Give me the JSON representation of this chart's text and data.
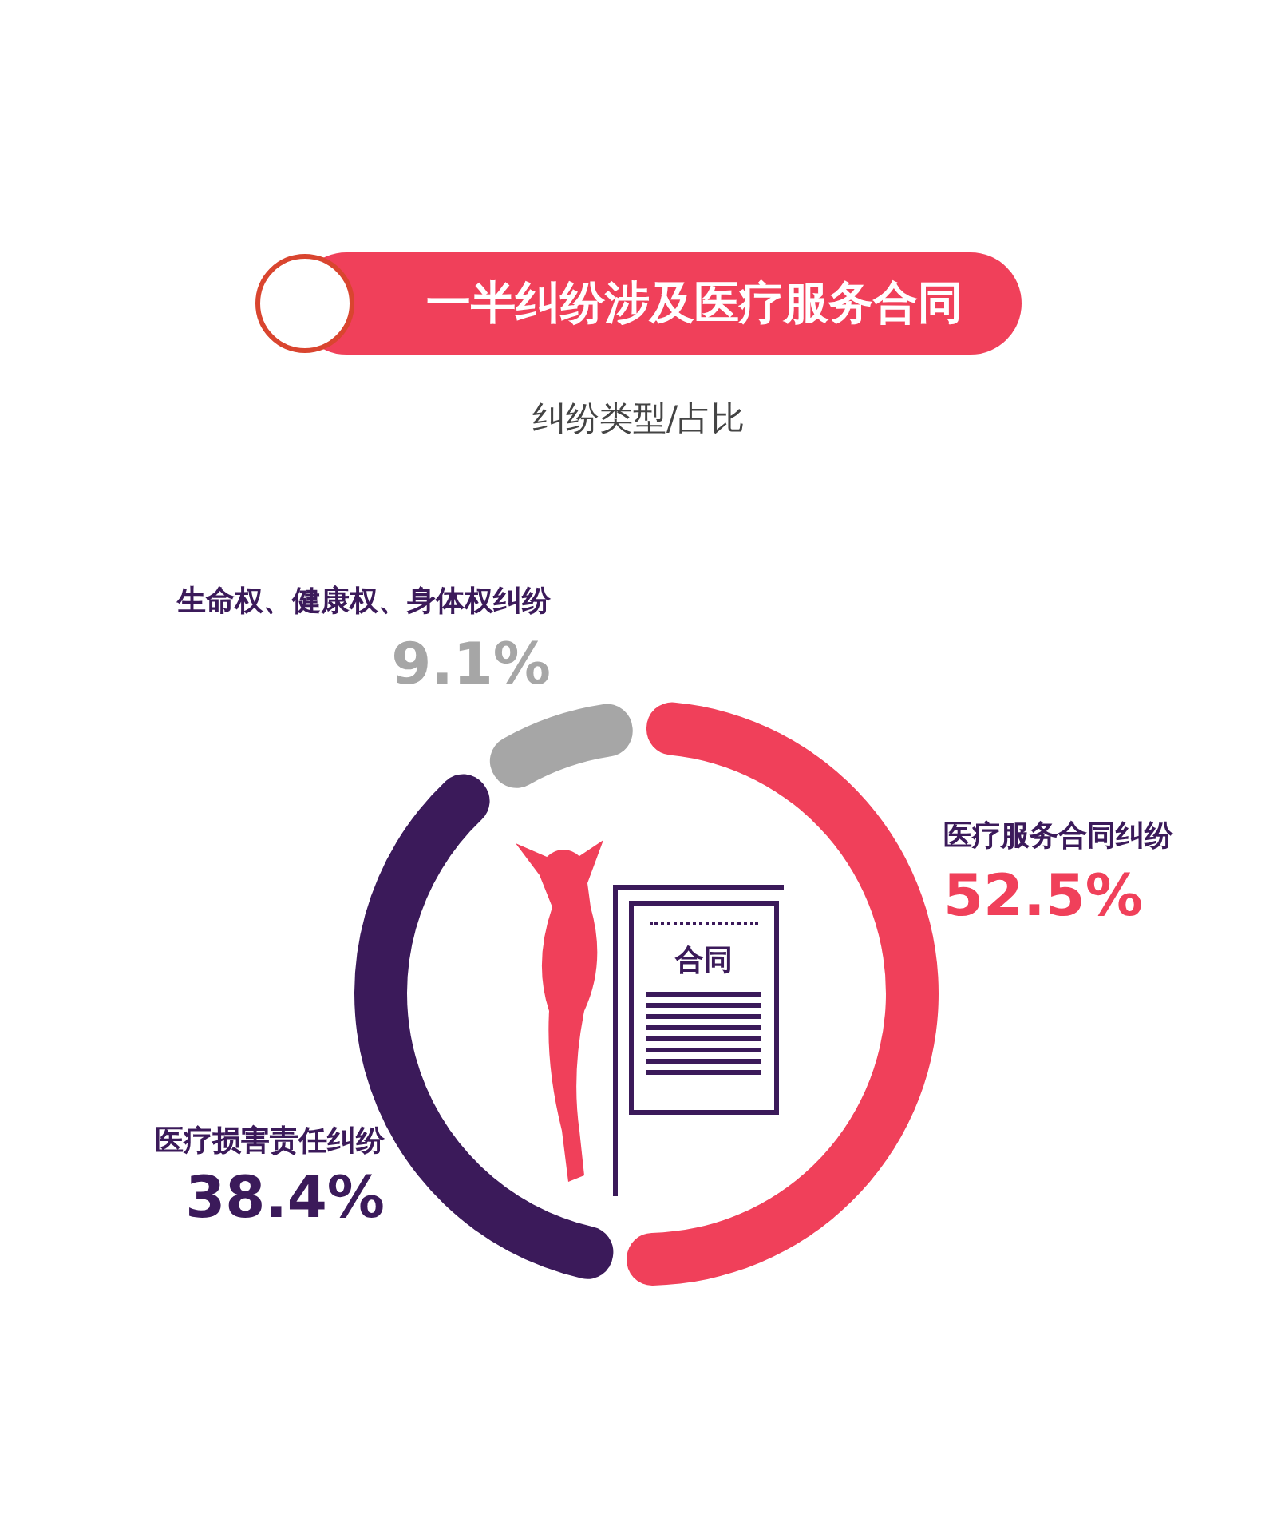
{
  "chart_data": {
    "type": "donut",
    "title": "一半纠纷涉及医疗服务合同",
    "subtitle": "纠纷类型/占比",
    "categories": [
      "医疗服务合同纠纷",
      "医疗损害责任纠纷",
      "生命权、健康权、身体权纠纷"
    ],
    "values": [
      52.5,
      38.4,
      9.1
    ],
    "colors": [
      "#f0405a",
      "#3b1a5a",
      "#a6a6a6"
    ],
    "value_labels": [
      "52.5%",
      "38.4%",
      "9.1%"
    ],
    "annotations": [
      "合同"
    ]
  }
}
